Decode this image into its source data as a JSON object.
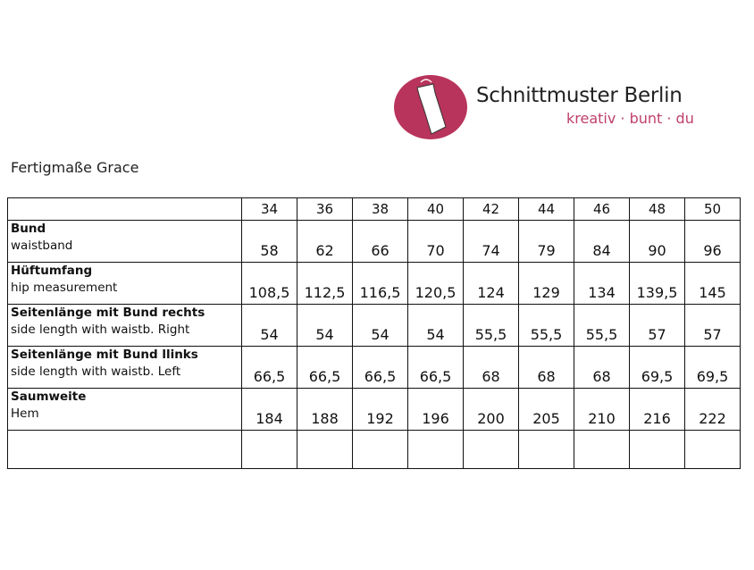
{
  "logo": {
    "brand": "Schnittmuster Berlin",
    "tagline": "kreativ · bunt · du",
    "color": "#b8345c",
    "icon": "dress-on-hanger-icon"
  },
  "title": "Fertigmaße Grace",
  "table": {
    "sizes": [
      "34",
      "36",
      "38",
      "40",
      "42",
      "44",
      "46",
      "48",
      "50"
    ],
    "rows": [
      {
        "de": "Bund",
        "en": "waistband",
        "values": [
          "58",
          "62",
          "66",
          "70",
          "74",
          "79",
          "84",
          "90",
          "96"
        ]
      },
      {
        "de": "Hüftumfang",
        "en": "hip measurement",
        "values": [
          "108,5",
          "112,5",
          "116,5",
          "120,5",
          "124",
          "129",
          "134",
          "139,5",
          "145"
        ]
      },
      {
        "de": "Seitenlänge mit Bund rechts",
        "en": "side length with waistb. Right",
        "values": [
          "54",
          "54",
          "54",
          "54",
          "55,5",
          "55,5",
          "55,5",
          "57",
          "57"
        ]
      },
      {
        "de": "Seitenlänge mit Bund llinks",
        "en": "side length with waistb. Left",
        "values": [
          "66,5",
          "66,5",
          "66,5",
          "66,5",
          "68",
          "68",
          "68",
          "69,5",
          "69,5"
        ]
      },
      {
        "de": "Saumweite",
        "en": "Hem",
        "values": [
          "184",
          "188",
          "192",
          "196",
          "200",
          "205",
          "210",
          "216",
          "222"
        ]
      }
    ]
  }
}
